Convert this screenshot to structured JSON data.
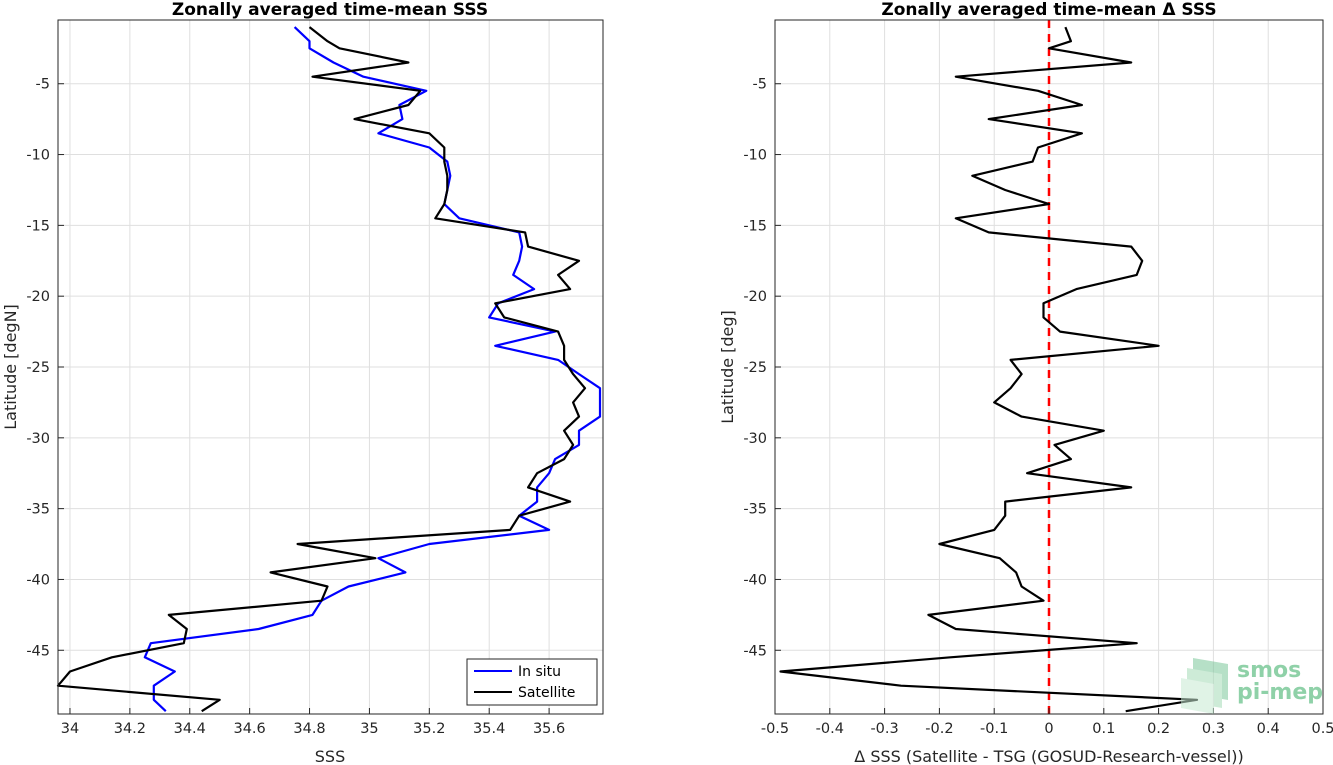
{
  "logo": {
    "line1": "smos",
    "line2": "pi-mep"
  },
  "chart_data": [
    {
      "type": "line",
      "title": "Zonally averaged time-mean SSS",
      "xlabel": "SSS",
      "ylabel": "Latitude [degN]",
      "xlim": [
        33.96,
        35.78
      ],
      "ylim": [
        -49.5,
        -0.5
      ],
      "xticks": [
        34,
        34.2,
        34.4,
        34.6,
        34.8,
        35,
        35.2,
        35.4,
        35.6
      ],
      "yticks": [
        -45,
        -40,
        -35,
        -30,
        -25,
        -20,
        -15,
        -10,
        -5
      ],
      "grid": true,
      "legend": "bottom-right",
      "latitudes": [
        -1,
        -2,
        -2.5,
        -3.5,
        -4.5,
        -5.5,
        -6.5,
        -7.5,
        -8.5,
        -9.5,
        -10.5,
        -11.5,
        -12.5,
        -13.5,
        -14.5,
        -15.5,
        -16.5,
        -17.5,
        -18.5,
        -19.5,
        -20.5,
        -21.5,
        -22.5,
        -23.5,
        -24.5,
        -25.5,
        -26.5,
        -27.5,
        -28.5,
        -29.5,
        -30.5,
        -31.5,
        -32.5,
        -33.5,
        -34.5,
        -35.5,
        -36.5,
        -37.5,
        -38.5,
        -39.5,
        -40.5,
        -41.5,
        -42.5,
        -43.5,
        -44.5,
        -45.5,
        -46.5,
        -47.5,
        -48.5,
        -49.3
      ],
      "series": [
        {
          "name": "In situ",
          "color": "#0000ff",
          "values": [
            34.75,
            34.8,
            34.8,
            34.88,
            34.98,
            35.19,
            35.1,
            35.11,
            35.03,
            35.2,
            35.26,
            35.27,
            35.26,
            35.25,
            35.3,
            35.5,
            35.51,
            35.5,
            35.48,
            35.55,
            35.43,
            35.4,
            35.62,
            35.42,
            35.63,
            35.7,
            35.77,
            35.77,
            35.77,
            35.7,
            35.7,
            35.62,
            35.6,
            35.56,
            35.56,
            35.5,
            35.6,
            35.2,
            35.03,
            35.12,
            34.93,
            34.84,
            34.81,
            34.63,
            34.27,
            34.25,
            34.35,
            34.28,
            34.28,
            34.32
          ]
        },
        {
          "name": "Satellite",
          "color": "#000000",
          "values": [
            34.8,
            34.86,
            34.9,
            35.13,
            34.81,
            35.17,
            35.13,
            34.95,
            35.2,
            35.25,
            35.25,
            35.26,
            35.26,
            35.25,
            35.22,
            35.52,
            35.53,
            35.7,
            35.63,
            35.67,
            35.42,
            35.45,
            35.63,
            35.65,
            35.65,
            35.68,
            35.72,
            35.68,
            35.7,
            35.65,
            35.68,
            35.65,
            35.56,
            35.53,
            35.67,
            35.5,
            35.47,
            34.76,
            35.02,
            34.67,
            34.86,
            34.84,
            34.33,
            34.39,
            34.38,
            34.14,
            34.0,
            33.96,
            34.5,
            34.44
          ]
        }
      ]
    },
    {
      "type": "line",
      "title": "Zonally averaged time-mean Δ SSS",
      "xlabel": "Δ SSS (Satellite - TSG (GOSUD-Research-vessel))",
      "ylabel": "Latitude [deg]",
      "xlim": [
        -0.5,
        0.5
      ],
      "ylim": [
        -49.5,
        -0.5
      ],
      "xticks": [
        -0.5,
        -0.4,
        -0.3,
        -0.2,
        -0.1,
        0,
        0.1,
        0.2,
        0.3,
        0.4,
        0.5
      ],
      "yticks": [
        -45,
        -40,
        -35,
        -30,
        -25,
        -20,
        -15,
        -10,
        -5
      ],
      "grid": true,
      "reference_line": {
        "x": 0,
        "color": "#ff0000",
        "style": "dashed"
      },
      "latitudes": [
        -1,
        -2,
        -2.5,
        -3.5,
        -4.5,
        -5.5,
        -6.5,
        -7.5,
        -8.5,
        -9.5,
        -10.5,
        -11.5,
        -12.5,
        -13.5,
        -14.5,
        -15.5,
        -16.5,
        -17.5,
        -18.5,
        -19.5,
        -20.5,
        -21.5,
        -22.5,
        -23.5,
        -24.5,
        -25.5,
        -26.5,
        -27.5,
        -28.5,
        -29.5,
        -30.5,
        -31.5,
        -32.5,
        -33.5,
        -34.5,
        -35.5,
        -36.5,
        -37.5,
        -38.5,
        -39.5,
        -40.5,
        -41.5,
        -42.5,
        -43.5,
        -44.5,
        -45.5,
        -46.5,
        -47.5,
        -48.5,
        -49.3
      ],
      "series": [
        {
          "name": "",
          "color": "#000000",
          "values": [
            0.03,
            0.04,
            0.0,
            0.15,
            -0.17,
            -0.02,
            0.06,
            -0.11,
            0.06,
            -0.02,
            -0.03,
            -0.14,
            -0.08,
            0.0,
            -0.17,
            -0.11,
            0.15,
            0.17,
            0.16,
            0.05,
            -0.01,
            -0.01,
            0.02,
            0.2,
            -0.07,
            -0.05,
            -0.07,
            -0.1,
            -0.05,
            0.1,
            0.01,
            0.04,
            -0.04,
            0.15,
            -0.08,
            -0.08,
            -0.1,
            -0.2,
            -0.09,
            -0.06,
            -0.05,
            -0.01,
            -0.22,
            -0.17,
            0.16,
            -0.18,
            -0.49,
            -0.27,
            0.27,
            0.14
          ]
        }
      ]
    }
  ]
}
